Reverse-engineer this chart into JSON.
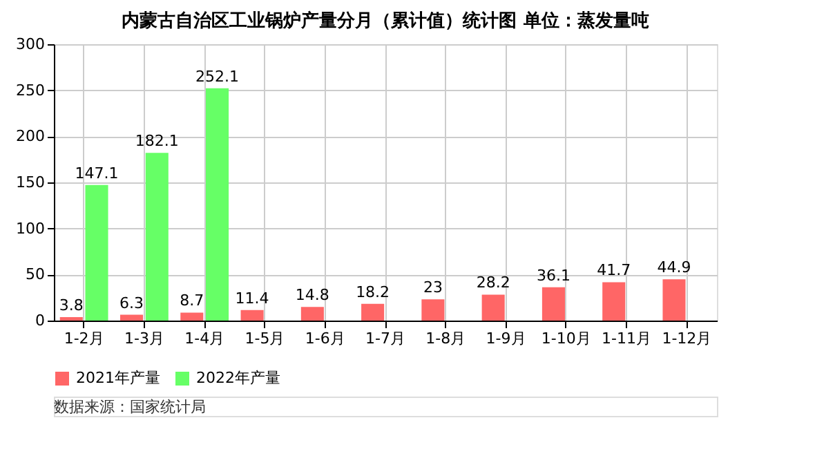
{
  "chart_data": {
    "type": "bar",
    "title": "内蒙古自治区工业锅炉产量分月（累计值）统计图 单位：蒸发量吨",
    "categories": [
      "1-2月",
      "1-3月",
      "1-4月",
      "1-5月",
      "1-6月",
      "1-7月",
      "1-8月",
      "1-9月",
      "1-10月",
      "1-11月",
      "1-12月"
    ],
    "series": [
      {
        "name": "2021年产量",
        "color": "#ff6666",
        "values": [
          3.8,
          6.3,
          8.7,
          11.4,
          14.8,
          18.2,
          23,
          28.2,
          36.1,
          41.7,
          44.9
        ]
      },
      {
        "name": "2022年产量",
        "color": "#66ff66",
        "values": [
          147.1,
          182.1,
          252.1,
          null,
          null,
          null,
          null,
          null,
          null,
          null,
          null
        ]
      }
    ],
    "ylim": [
      0,
      300
    ],
    "yticks": [
      0,
      50,
      100,
      150,
      200,
      250,
      300
    ],
    "grid": true,
    "legend": "bottom",
    "data_labels": true,
    "annotations": [
      "数据来源：国家统计局"
    ]
  }
}
